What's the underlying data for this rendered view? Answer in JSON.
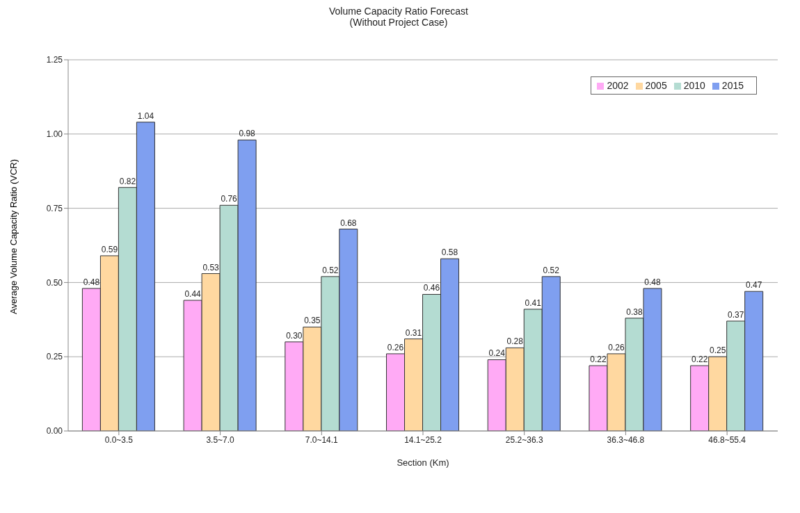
{
  "chart_data": {
    "type": "bar",
    "title": "Volume Capacity Ratio Forecast",
    "subtitle": "(Without Project Case)",
    "xlabel": "Section (Km)",
    "ylabel": "Average Volume Capacity Ratio (VCR)",
    "categories": [
      "0.0~3.5",
      "3.5~7.0",
      "7.0~14.1",
      "14.1~25.2",
      "25.2~36.3",
      "36.3~46.8",
      "46.8~55.4"
    ],
    "series": [
      {
        "name": "2002",
        "color": "#ffaaf5",
        "values": [
          0.48,
          0.44,
          0.3,
          0.26,
          0.24,
          0.22,
          0.22
        ],
        "value_labels": [
          "0.48",
          "0.44",
          "0.30",
          "0.26",
          "0.24",
          "0.22",
          "0.22"
        ]
      },
      {
        "name": "2005",
        "color": "#ffd8a0",
        "values": [
          0.59,
          0.53,
          0.35,
          0.31,
          0.28,
          0.26,
          0.25
        ],
        "value_labels": [
          "0.59",
          "0.53",
          "0.35",
          "0.31",
          "0.28",
          "0.26",
          "0.25"
        ]
      },
      {
        "name": "2010",
        "color": "#b4dcd2",
        "values": [
          0.82,
          0.76,
          0.52,
          0.46,
          0.41,
          0.38,
          0.37
        ],
        "value_labels": [
          "0.82",
          "0.76",
          "0.52",
          "0.46",
          "0.41",
          "0.38",
          "0.37"
        ]
      },
      {
        "name": "2015",
        "color": "#7f9ff0",
        "values": [
          1.04,
          0.98,
          0.68,
          0.58,
          0.52,
          0.48,
          0.47
        ],
        "value_labels": [
          "1.04",
          "0.98",
          "0.68",
          "0.58",
          "0.52",
          "0.48",
          "0.47"
        ]
      }
    ],
    "ylim": [
      0,
      1.25
    ],
    "yticks": [
      {
        "value": 0,
        "label": "0.00"
      },
      {
        "value": 0.25,
        "label": "0.25"
      },
      {
        "value": 0.5,
        "label": "0.50"
      },
      {
        "value": 0.75,
        "label": "0.75"
      },
      {
        "value": 1,
        "label": "1.00"
      },
      {
        "value": 1.25,
        "label": "1.25"
      }
    ],
    "grid": "y",
    "legend": "top right"
  }
}
